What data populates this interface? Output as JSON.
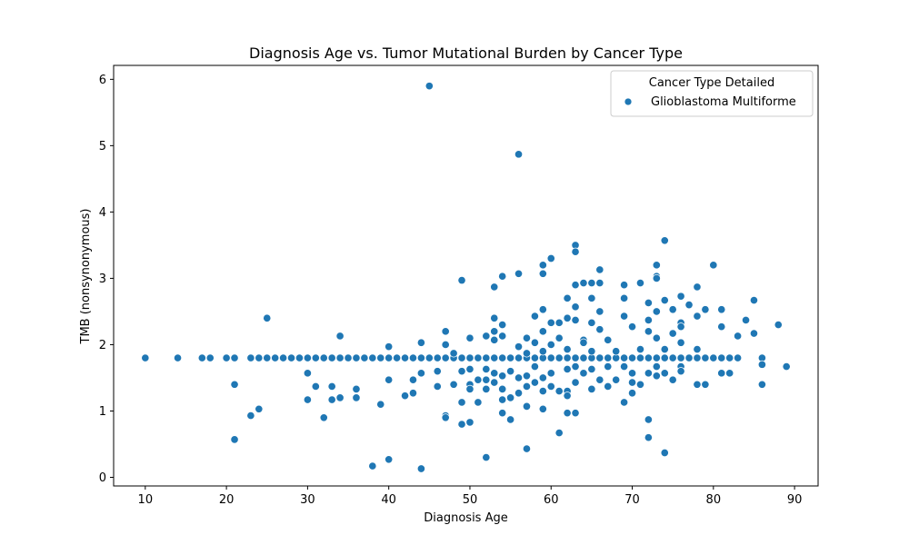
{
  "chart_data": {
    "type": "scatter",
    "title": "Diagnosis Age vs. Tumor Mutational Burden by Cancer Type",
    "xlabel": "Diagnosis Age",
    "ylabel": "TMB (nonsynonymous)",
    "xlim": [
      6.1,
      92.9
    ],
    "ylim": [
      -0.13,
      6.21
    ],
    "xticks": [
      10,
      20,
      30,
      40,
      50,
      60,
      70,
      80,
      90
    ],
    "yticks": [
      0,
      1,
      2,
      3,
      4,
      5,
      6
    ],
    "grid": false,
    "legend": {
      "title": "Cancer Type Detailed",
      "placement": "top-right",
      "entries": [
        "Glioblastoma Multiforme"
      ]
    },
    "series": [
      {
        "name": "Glioblastoma Multiforme",
        "color": "#1f77b4",
        "baseline_group": {
          "y": 1.8,
          "x": [
            10,
            14,
            17,
            18,
            20,
            21,
            23,
            24,
            25,
            26,
            27,
            28,
            29,
            30,
            31,
            32,
            33,
            34,
            35,
            36,
            37,
            38,
            39,
            40,
            41,
            42,
            43,
            44,
            45,
            46,
            47,
            48,
            49,
            50,
            51,
            52,
            53,
            54,
            55,
            56,
            57,
            58,
            59,
            60,
            61,
            62,
            63,
            64,
            65,
            66,
            67,
            68,
            69,
            70,
            71,
            72,
            73,
            74,
            75,
            76,
            77,
            78,
            79,
            80,
            81,
            82,
            83,
            86
          ]
        },
        "points": [
          [
            45,
            5.9
          ],
          [
            56,
            4.87
          ],
          [
            74,
            3.57
          ],
          [
            63,
            3.5
          ],
          [
            63,
            3.4
          ],
          [
            60,
            3.3
          ],
          [
            73,
            3.2
          ],
          [
            80,
            3.2
          ],
          [
            59,
            3.2
          ],
          [
            66,
            3.13
          ],
          [
            56,
            3.07
          ],
          [
            59,
            3.07
          ],
          [
            54,
            3.03
          ],
          [
            73,
            3.03
          ],
          [
            49,
            2.97
          ],
          [
            73,
            3.0
          ],
          [
            64,
            2.93
          ],
          [
            65,
            2.93
          ],
          [
            66,
            2.93
          ],
          [
            69,
            2.9
          ],
          [
            71,
            2.93
          ],
          [
            78,
            2.87
          ],
          [
            53,
            2.87
          ],
          [
            63,
            2.9
          ],
          [
            76,
            2.73
          ],
          [
            85,
            2.67
          ],
          [
            62,
            2.7
          ],
          [
            65,
            2.7
          ],
          [
            69,
            2.7
          ],
          [
            72,
            2.63
          ],
          [
            74,
            2.67
          ],
          [
            77,
            2.6
          ],
          [
            79,
            2.53
          ],
          [
            81,
            2.53
          ],
          [
            59,
            2.53
          ],
          [
            63,
            2.57
          ],
          [
            66,
            2.5
          ],
          [
            73,
            2.5
          ],
          [
            75,
            2.53
          ],
          [
            58,
            2.43
          ],
          [
            53,
            2.4
          ],
          [
            25,
            2.4
          ],
          [
            62,
            2.4
          ],
          [
            63,
            2.37
          ],
          [
            69,
            2.43
          ],
          [
            72,
            2.37
          ],
          [
            78,
            2.43
          ],
          [
            84,
            2.37
          ],
          [
            60,
            2.33
          ],
          [
            61,
            2.33
          ],
          [
            54,
            2.3
          ],
          [
            65,
            2.33
          ],
          [
            76,
            2.33
          ],
          [
            88,
            2.3
          ],
          [
            70,
            2.27
          ],
          [
            81,
            2.27
          ],
          [
            53,
            2.2
          ],
          [
            59,
            2.2
          ],
          [
            47,
            2.2
          ],
          [
            72,
            2.2
          ],
          [
            75,
            2.17
          ],
          [
            66,
            2.23
          ],
          [
            76,
            2.27
          ],
          [
            85,
            2.17
          ],
          [
            34,
            2.13
          ],
          [
            52,
            2.13
          ],
          [
            54,
            2.13
          ],
          [
            57,
            2.1
          ],
          [
            61,
            2.1
          ],
          [
            83,
            2.13
          ],
          [
            50,
            2.1
          ],
          [
            64,
            2.07
          ],
          [
            67,
            2.07
          ],
          [
            73,
            2.1
          ],
          [
            44,
            2.03
          ],
          [
            47,
            2.0
          ],
          [
            53,
            2.07
          ],
          [
            58,
            2.03
          ],
          [
            60,
            2.0
          ],
          [
            64,
            2.03
          ],
          [
            76,
            2.03
          ],
          [
            40,
            1.97
          ],
          [
            56,
            1.97
          ],
          [
            62,
            1.93
          ],
          [
            71,
            1.93
          ],
          [
            78,
            1.93
          ],
          [
            48,
            1.87
          ],
          [
            57,
            1.87
          ],
          [
            59,
            1.9
          ],
          [
            65,
            1.9
          ],
          [
            68,
            1.9
          ],
          [
            74,
            1.93
          ],
          [
            50,
            1.63
          ],
          [
            49,
            1.6
          ],
          [
            52,
            1.63
          ],
          [
            55,
            1.6
          ],
          [
            58,
            1.67
          ],
          [
            62,
            1.63
          ],
          [
            63,
            1.67
          ],
          [
            65,
            1.63
          ],
          [
            67,
            1.67
          ],
          [
            69,
            1.67
          ],
          [
            73,
            1.67
          ],
          [
            76,
            1.67
          ],
          [
            86,
            1.7
          ],
          [
            89,
            1.67
          ],
          [
            46,
            1.6
          ],
          [
            53,
            1.57
          ],
          [
            54,
            1.53
          ],
          [
            57,
            1.53
          ],
          [
            60,
            1.57
          ],
          [
            64,
            1.57
          ],
          [
            30,
            1.57
          ],
          [
            44,
            1.57
          ],
          [
            51,
            1.47
          ],
          [
            52,
            1.47
          ],
          [
            56,
            1.5
          ],
          [
            59,
            1.5
          ],
          [
            70,
            1.57
          ],
          [
            72,
            1.57
          ],
          [
            74,
            1.57
          ],
          [
            76,
            1.6
          ],
          [
            81,
            1.57
          ],
          [
            82,
            1.57
          ],
          [
            40,
            1.47
          ],
          [
            43,
            1.47
          ],
          [
            50,
            1.4
          ],
          [
            53,
            1.43
          ],
          [
            58,
            1.43
          ],
          [
            63,
            1.43
          ],
          [
            66,
            1.47
          ],
          [
            68,
            1.47
          ],
          [
            70,
            1.43
          ],
          [
            73,
            1.53
          ],
          [
            75,
            1.47
          ],
          [
            78,
            1.4
          ],
          [
            79,
            1.4
          ],
          [
            86,
            1.4
          ],
          [
            21,
            1.4
          ],
          [
            31,
            1.37
          ],
          [
            33,
            1.37
          ],
          [
            46,
            1.37
          ],
          [
            48,
            1.4
          ],
          [
            50,
            1.33
          ],
          [
            52,
            1.33
          ],
          [
            54,
            1.33
          ],
          [
            57,
            1.37
          ],
          [
            60,
            1.37
          ],
          [
            62,
            1.3
          ],
          [
            65,
            1.33
          ],
          [
            67,
            1.37
          ],
          [
            71,
            1.4
          ],
          [
            36,
            1.33
          ],
          [
            42,
            1.23
          ],
          [
            43,
            1.27
          ],
          [
            56,
            1.27
          ],
          [
            59,
            1.3
          ],
          [
            61,
            1.3
          ],
          [
            70,
            1.27
          ],
          [
            30,
            1.17
          ],
          [
            33,
            1.17
          ],
          [
            34,
            1.2
          ],
          [
            36,
            1.2
          ],
          [
            39,
            1.1
          ],
          [
            49,
            1.13
          ],
          [
            51,
            1.13
          ],
          [
            54,
            1.17
          ],
          [
            55,
            1.2
          ],
          [
            62,
            1.23
          ],
          [
            69,
            1.13
          ],
          [
            24,
            1.03
          ],
          [
            54,
            0.97
          ],
          [
            57,
            1.07
          ],
          [
            59,
            1.03
          ],
          [
            62,
            0.97
          ],
          [
            63,
            0.97
          ],
          [
            23,
            0.93
          ],
          [
            32,
            0.9
          ],
          [
            47,
            0.93
          ],
          [
            47,
            0.9
          ],
          [
            49,
            0.8
          ],
          [
            50,
            0.83
          ],
          [
            55,
            0.87
          ],
          [
            72,
            0.87
          ],
          [
            61,
            0.67
          ],
          [
            72,
            0.6
          ],
          [
            21,
            0.57
          ],
          [
            57,
            0.43
          ],
          [
            74,
            0.37
          ],
          [
            52,
            0.3
          ],
          [
            40,
            0.27
          ],
          [
            38,
            0.17
          ],
          [
            44,
            0.13
          ]
        ]
      }
    ]
  }
}
